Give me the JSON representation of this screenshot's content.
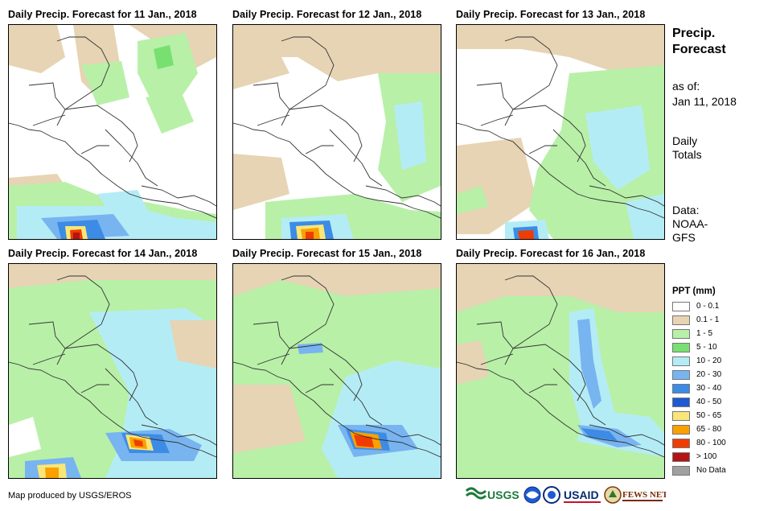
{
  "panels": [
    {
      "title": "Daily Precip. Forecast for 11 Jan., 2018"
    },
    {
      "title": "Daily Precip. Forecast for 12 Jan., 2018"
    },
    {
      "title": "Daily Precip. Forecast for 13 Jan., 2018"
    },
    {
      "title": "Daily Precip. Forecast for 14 Jan., 2018"
    },
    {
      "title": "Daily Precip. Forecast for 15 Jan., 2018"
    },
    {
      "title": "Daily Precip. Forecast for 16 Jan., 2018"
    }
  ],
  "side": {
    "title_line1": "Precip.",
    "title_line2": "Forecast",
    "asof_label": "as of:",
    "asof_date": "Jan 11, 2018",
    "totals_line1": "Daily",
    "totals_line2": "Totals",
    "data_line1": "Data:",
    "data_line2": "NOAA-",
    "data_line3": "GFS"
  },
  "legend": {
    "title": "PPT (mm)",
    "items": [
      {
        "label": "0 - 0.1",
        "color": "#ffffff"
      },
      {
        "label": "0.1 - 1",
        "color": "#e6d4b4"
      },
      {
        "label": "1 - 5",
        "color": "#b8f0a8"
      },
      {
        "label": "5 - 10",
        "color": "#78e070"
      },
      {
        "label": "10 - 20",
        "color": "#b4ecf6"
      },
      {
        "label": "20 - 30",
        "color": "#78b4f0"
      },
      {
        "label": "30 - 40",
        "color": "#3c8ce6"
      },
      {
        "label": "40 - 50",
        "color": "#1e5ad2"
      },
      {
        "label": "50 - 65",
        "color": "#fae678"
      },
      {
        "label": "65 - 80",
        "color": "#faa000"
      },
      {
        "label": "80 - 100",
        "color": "#f03c00"
      },
      {
        "label": "> 100",
        "color": "#b41414"
      },
      {
        "label": "No Data",
        "color": "#a0a0a0"
      }
    ]
  },
  "footer": {
    "credit": "Map produced by USGS/EROS",
    "logos": {
      "usgs": "USGS",
      "usaid": "USAID",
      "fewsnet": "FEWS NET"
    }
  }
}
